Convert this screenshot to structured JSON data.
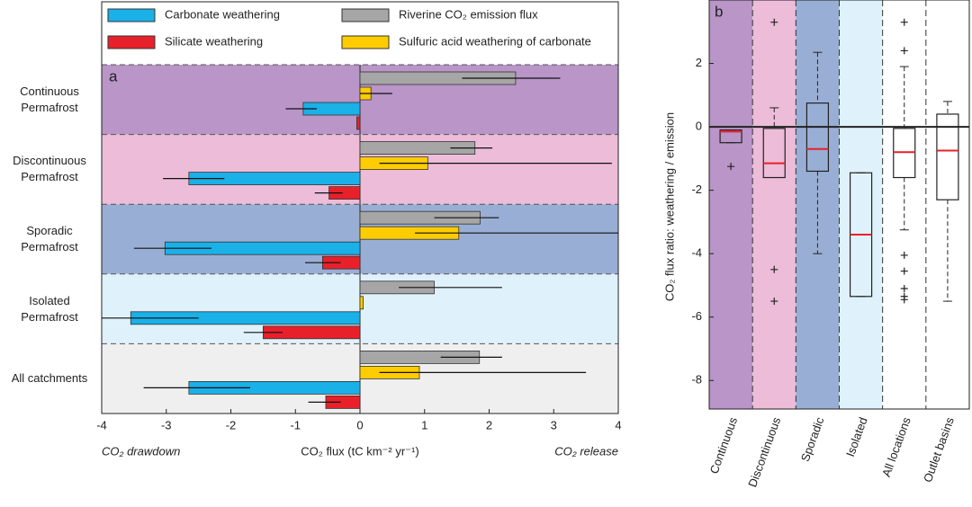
{
  "chart_data": [
    {
      "type": "bar",
      "panel_label": "a",
      "categories": [
        "Continuous\nPermafrost",
        "Discontinuous\nPermafrost",
        "Sporadic\nPermafrost",
        "Isolated\nPermafrost",
        "All catchments"
      ],
      "band_colors": [
        "#b995c8",
        "#ecbcd8",
        "#99aed4",
        "#dff1fb",
        "#efefef"
      ],
      "series": [
        {
          "name": "Riverine CO₂ emission flux",
          "color": "#a6a6a6",
          "values": [
            2.41,
            1.78,
            1.86,
            1.15,
            1.85
          ],
          "err_low": [
            1.58,
            1.4,
            1.15,
            0.6,
            1.25
          ],
          "err_high": [
            3.1,
            2.05,
            2.15,
            2.2,
            2.2
          ]
        },
        {
          "name": "Sulfuric acid weathering of carbonate",
          "color": "#ffcc00",
          "values": [
            0.17,
            1.05,
            1.53,
            0.05,
            0.92
          ],
          "err_low": [
            0.0,
            0.3,
            0.85,
            null,
            0.3
          ],
          "err_high": [
            0.5,
            3.9,
            4.0,
            null,
            3.5
          ]
        },
        {
          "name": "Carbonate weathering",
          "color": "#1ab0e8",
          "values": [
            -0.88,
            -2.65,
            -3.02,
            -3.55,
            -2.65
          ],
          "err_low": [
            -1.15,
            -3.05,
            -3.5,
            -4.0,
            -3.35
          ],
          "err_high": [
            -0.67,
            -2.1,
            -2.3,
            -2.5,
            -1.7
          ]
        },
        {
          "name": "Silicate weathering",
          "color": "#e8202a",
          "values": [
            -0.05,
            -0.48,
            -0.58,
            -1.5,
            -0.53
          ],
          "err_low": [
            null,
            -0.7,
            -0.85,
            -1.8,
            -0.8
          ],
          "err_high": [
            null,
            -0.27,
            -0.3,
            -1.2,
            -0.3
          ]
        }
      ],
      "xlim": [
        -4,
        4
      ],
      "xticks": [
        -4,
        -3,
        -2,
        -1,
        0,
        1,
        2,
        3,
        4
      ],
      "x_label": "CO₂ flux (tC km⁻² yr⁻¹)",
      "annotations": [
        "CO₂ drawdown",
        "CO₂ release"
      ]
    },
    {
      "type": "box",
      "panel_label": "b",
      "categories": [
        "Continuous",
        "Discontinuous",
        "Sporadic",
        "Isolated",
        "All locations",
        "Outlet basins"
      ],
      "band_colors": [
        "#b995c8",
        "#ecbcd8",
        "#99aed4",
        "#dff1fb",
        "#ffffff",
        "#ffffff"
      ],
      "median_color": "#e8202a",
      "boxes": [
        {
          "whisker_low": -0.5,
          "q1": -0.5,
          "median": -0.15,
          "q3": -0.1,
          "whisker_high": -0.1,
          "outliers": [
            -1.25
          ]
        },
        {
          "whisker_low": -1.6,
          "q1": -1.6,
          "median": -1.15,
          "q3": -0.05,
          "whisker_high": 0.6,
          "outliers": [
            3.3,
            -4.5,
            -5.5
          ]
        },
        {
          "whisker_low": -4.0,
          "q1": -1.4,
          "median": -0.7,
          "q3": 0.75,
          "whisker_high": 2.35,
          "outliers": []
        },
        {
          "whisker_low": -5.35,
          "q1": -5.35,
          "median": -3.4,
          "q3": -1.45,
          "whisker_high": -1.45,
          "outliers": []
        },
        {
          "whisker_low": -3.25,
          "q1": -1.6,
          "median": -0.8,
          "q3": -0.05,
          "whisker_high": 1.9,
          "outliers": [
            3.3,
            2.4,
            -4.05,
            -4.55,
            -5.1,
            -5.35,
            -5.45
          ]
        },
        {
          "whisker_low": -5.5,
          "q1": -2.3,
          "median": -0.75,
          "q3": 0.4,
          "whisker_high": 0.8,
          "outliers": []
        }
      ],
      "ylim": [
        -8.9,
        4
      ],
      "yticks": [
        -8,
        -6,
        -4,
        -2,
        0,
        2
      ],
      "y_label": "CO₂ flux ratio: weathering / emission"
    }
  ]
}
